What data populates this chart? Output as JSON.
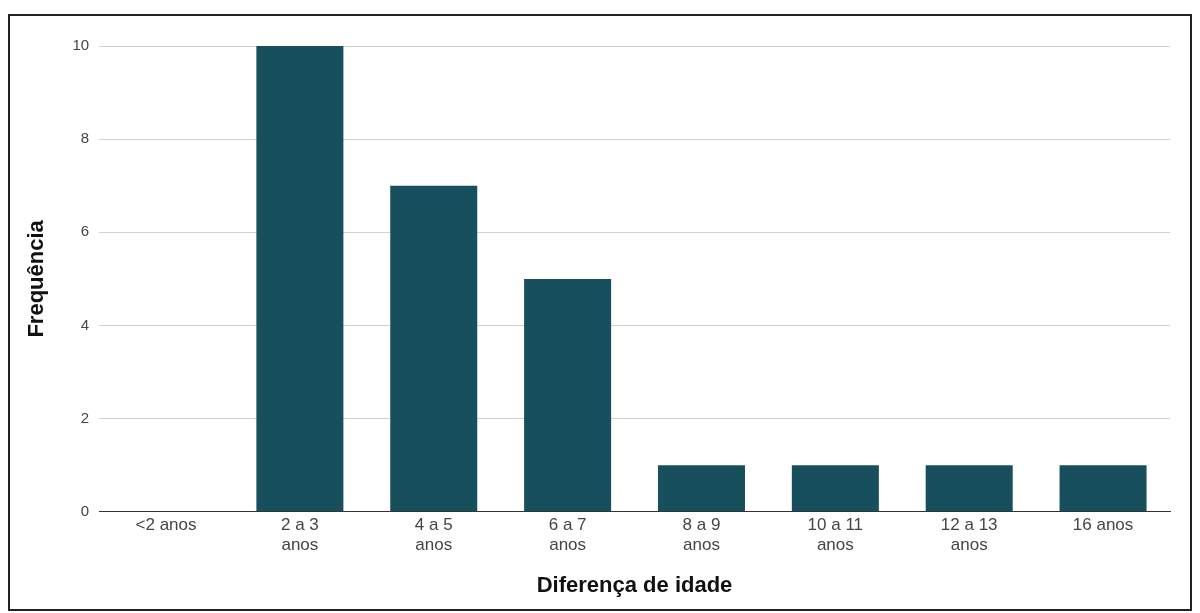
{
  "chart_data": {
    "type": "bar",
    "xlabel": "Diferença de idade",
    "ylabel": "Frequência",
    "categories": [
      "<2 anos",
      "2 a 3 anos",
      "4 a 5 anos",
      "6 a 7 anos",
      "8 a 9 anos",
      "10 a 11 anos",
      "12 a 13 anos",
      "16 anos"
    ],
    "values": [
      0,
      10,
      7,
      5,
      1,
      1,
      1,
      1
    ],
    "color": "#174f5c",
    "ylim": [
      0,
      10
    ],
    "yticks": [
      0,
      2,
      4,
      6,
      8,
      10
    ],
    "grid": "y",
    "legend": false
  }
}
